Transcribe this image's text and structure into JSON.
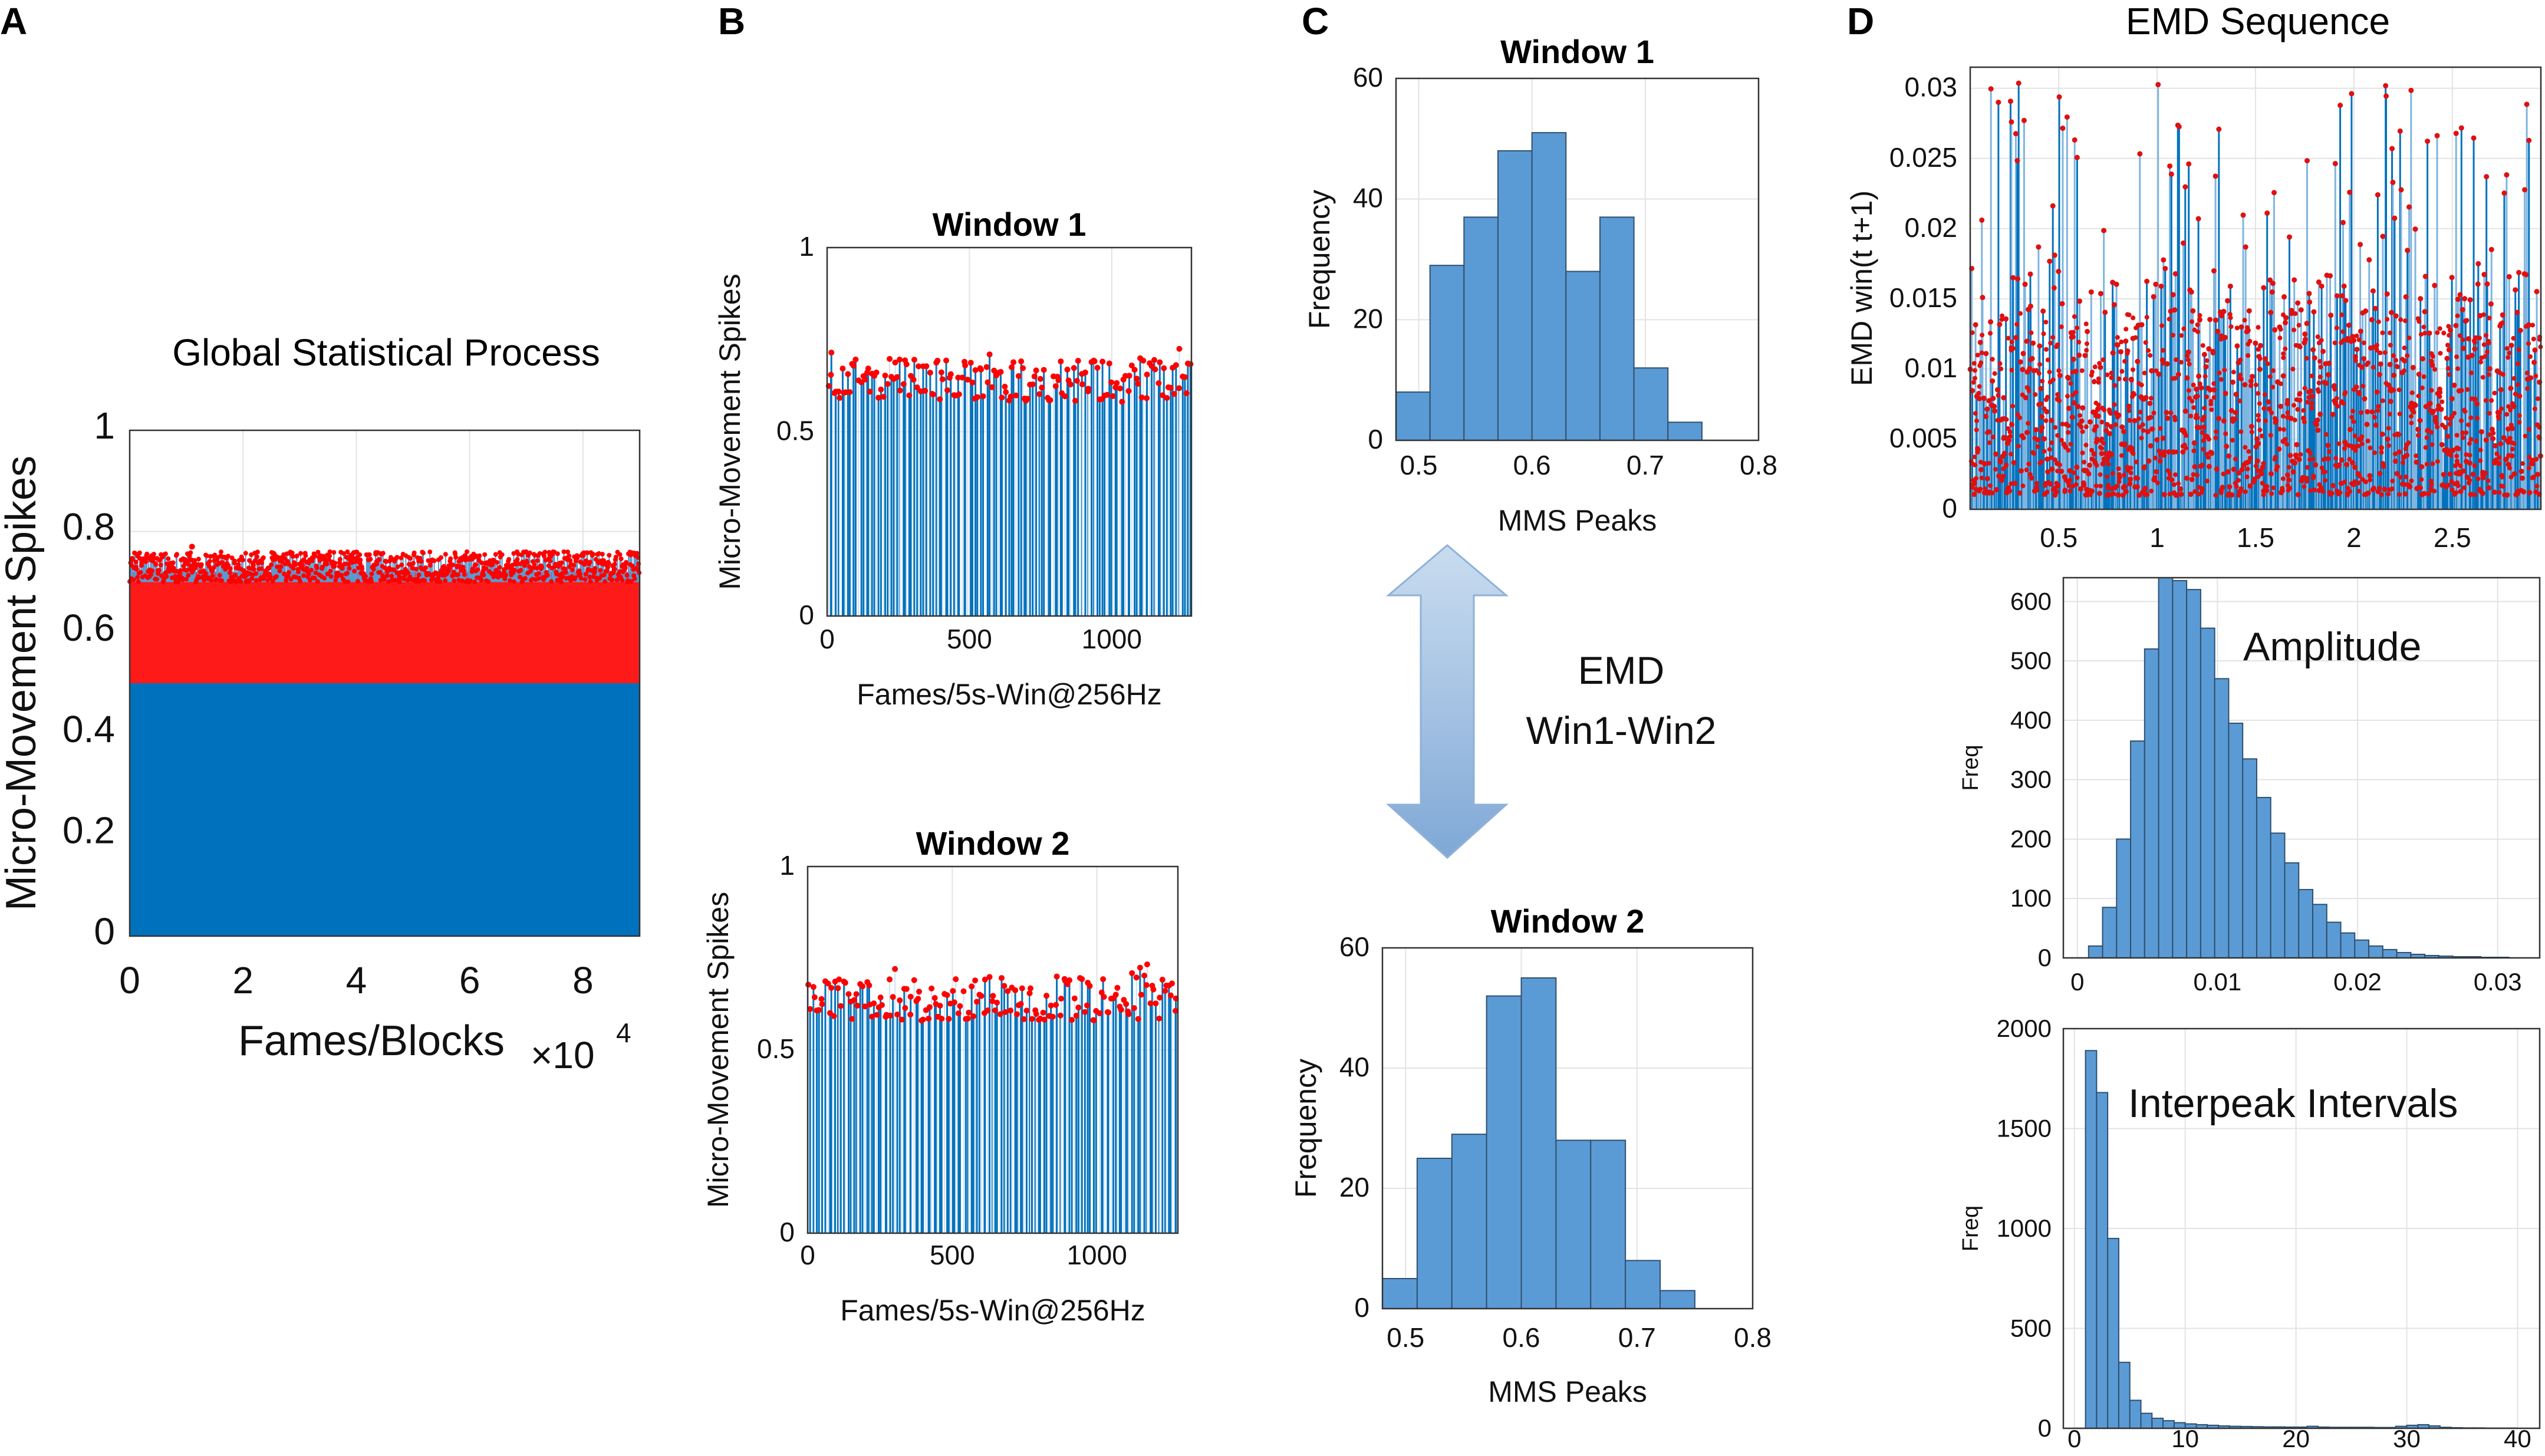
{
  "panel_labels": {
    "A": "A",
    "B": "B",
    "C": "C",
    "D": "D"
  },
  "arrow": {
    "text1": "EMD",
    "text2": "Win1-Win2"
  },
  "colors": {
    "stem_blue": "#0072bd",
    "peak_red": "#ff0000",
    "hist_fill": "#5b9bd5",
    "hist_edge": "#2f4f6f"
  },
  "chart_data": [
    {
      "id": "A",
      "type": "stem",
      "title": "Global Statistical Process",
      "xlabel": "Fames/Blocks",
      "xscale_label": "×10",
      "xscale_exp": "4",
      "ylabel": "Micro-Movement Spikes",
      "xlim": [
        0,
        9
      ],
      "ylim": [
        0,
        1
      ],
      "xticks": [
        0,
        2,
        4,
        6,
        8
      ],
      "yticks": [
        0,
        0.2,
        0.4,
        0.6,
        0.8,
        1
      ],
      "xtick_labels": [
        "0",
        "2",
        "4",
        "6",
        "8"
      ],
      "ytick_labels": [
        "0",
        "0.2",
        "0.4",
        "0.6",
        "0.8",
        "1"
      ],
      "baseline": 0.5,
      "peak_range": [
        0.5,
        0.75
      ],
      "max_peak": 0.77,
      "n_points": 90000
    },
    {
      "id": "B1",
      "type": "stem",
      "title": "Window 1",
      "xlabel": "Fames/5s-Win@256Hz",
      "ylabel": "Micro-Movement Spikes",
      "xlim": [
        0,
        1280
      ],
      "ylim": [
        0,
        1
      ],
      "xticks": [
        0,
        500,
        1000
      ],
      "yticks": [
        0,
        0.5,
        1
      ],
      "xtick_labels": [
        "0",
        "500",
        "1000"
      ],
      "ytick_labels": [
        "0",
        "0.5",
        "1"
      ],
      "peak_range": [
        0.52,
        0.75
      ],
      "n_points": 1280
    },
    {
      "id": "B2",
      "type": "stem",
      "title": "Window 2",
      "xlabel": "Fames/5s-Win@256Hz",
      "ylabel": "Micro-Movement Spikes",
      "xlim": [
        0,
        1280
      ],
      "ylim": [
        0,
        1
      ],
      "xticks": [
        0,
        500,
        1000
      ],
      "yticks": [
        0,
        0.5,
        1
      ],
      "xtick_labels": [
        "0",
        "500",
        "1000"
      ],
      "ytick_labels": [
        "0",
        "0.5",
        "1"
      ],
      "peak_range": [
        0.52,
        0.75
      ],
      "n_points": 1280
    },
    {
      "id": "C1",
      "type": "histogram",
      "title": "Window 1",
      "xlabel": "MMS Peaks",
      "ylabel": "Frequency",
      "xlim": [
        0.48,
        0.8
      ],
      "ylim": [
        0,
        60
      ],
      "xticks": [
        0.5,
        0.6,
        0.7,
        0.8
      ],
      "yticks": [
        0,
        20,
        40,
        60
      ],
      "xtick_labels": [
        "0.5",
        "0.6",
        "0.7",
        "0.8"
      ],
      "ytick_labels": [
        "0",
        "20",
        "40",
        "60"
      ],
      "bin_start": 0.48,
      "bin_width": 0.03,
      "values": [
        8,
        29,
        37,
        48,
        51,
        28,
        37,
        12,
        3
      ]
    },
    {
      "id": "C2",
      "type": "histogram",
      "title": "Window 2",
      "xlabel": "MMS Peaks",
      "ylabel": "Frequency",
      "xlim": [
        0.48,
        0.8
      ],
      "ylim": [
        0,
        60
      ],
      "xticks": [
        0.5,
        0.6,
        0.7,
        0.8
      ],
      "yticks": [
        0,
        20,
        40,
        60
      ],
      "xtick_labels": [
        "0.5",
        "0.6",
        "0.7",
        "0.8"
      ],
      "ytick_labels": [
        "0",
        "20",
        "40",
        "60"
      ],
      "bin_start": 0.48,
      "bin_width": 0.03,
      "values": [
        5,
        25,
        29,
        52,
        55,
        28,
        28,
        8,
        3
      ]
    },
    {
      "id": "D1",
      "type": "stem",
      "title": "EMD Sequence",
      "xlabel": "",
      "ylabel": "EMD win(t t+1)",
      "xlim": [
        0.05,
        2.95
      ],
      "ylim": [
        0,
        0.0315
      ],
      "xticks": [
        0.5,
        1,
        1.5,
        2,
        2.5
      ],
      "yticks": [
        0,
        0.005,
        0.01,
        0.015,
        0.02,
        0.025,
        0.03
      ],
      "xtick_labels": [
        "0.5",
        "1",
        "1.5",
        "2",
        "2.5"
      ],
      "ytick_labels": [
        "0",
        "0.005",
        "0.01",
        "0.015",
        "0.02",
        "0.025",
        "0.03"
      ],
      "peak_range": [
        0,
        0.031
      ],
      "n_points": 3000
    },
    {
      "id": "D2",
      "type": "histogram",
      "title": "",
      "annotation": "Amplitude",
      "xlabel": "",
      "ylabel": "Freq",
      "xlim": [
        -0.001,
        0.033
      ],
      "ylim": [
        0,
        640
      ],
      "xticks": [
        0,
        0.01,
        0.02,
        0.03
      ],
      "yticks": [
        0,
        100,
        200,
        300,
        400,
        500,
        600
      ],
      "xtick_labels": [
        "0",
        "0.01",
        "0.02",
        "0.03"
      ],
      "ytick_labels": [
        "0",
        "100",
        "200",
        "300",
        "400",
        "500",
        "600"
      ],
      "bin_start": 0.0008,
      "bin_width": 0.001,
      "values": [
        20,
        85,
        200,
        365,
        520,
        640,
        635,
        620,
        555,
        470,
        395,
        335,
        270,
        210,
        160,
        115,
        90,
        60,
        42,
        30,
        20,
        14,
        9,
        6,
        4,
        3,
        2,
        2,
        1,
        1
      ]
    },
    {
      "id": "D3",
      "type": "histogram",
      "title": "",
      "annotation": "Interpeak Intervals",
      "xlabel": "",
      "ylabel": "Freq",
      "xlim": [
        -1,
        42
      ],
      "ylim": [
        0,
        2000
      ],
      "xticks": [
        0,
        10,
        20,
        30,
        40
      ],
      "yticks": [
        0,
        500,
        1000,
        1500,
        2000
      ],
      "xtick_labels": [
        "0",
        "10",
        "20",
        "30",
        "40"
      ],
      "ytick_labels": [
        "0",
        "500",
        "1000",
        "1500",
        "2000"
      ],
      "bin_start": 1,
      "bin_width": 1,
      "values": [
        1890,
        1680,
        950,
        330,
        140,
        75,
        50,
        38,
        28,
        22,
        18,
        15,
        12,
        10,
        9,
        8,
        7,
        7,
        6,
        6,
        10,
        6,
        5,
        5,
        5,
        5,
        4,
        4,
        10,
        15,
        18,
        12,
        5,
        3,
        2,
        2,
        1,
        1,
        1
      ]
    }
  ]
}
